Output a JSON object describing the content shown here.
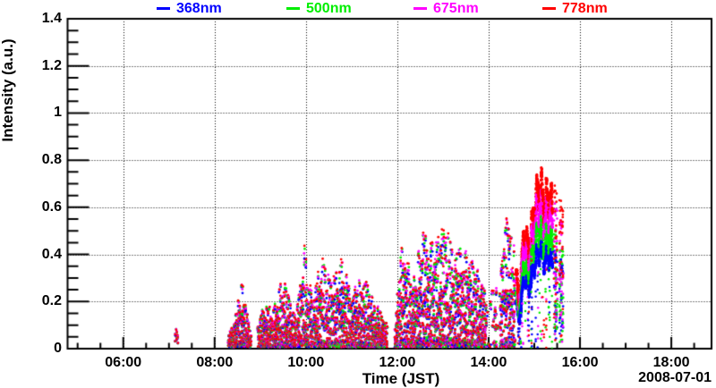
{
  "figure": {
    "y_axis_title": "Intensity (a.u.)",
    "x_axis_title": "Time (JST)",
    "date_label": "2008-07-01"
  },
  "chart_data": {
    "type": "scatter",
    "title": "",
    "x_axis": {
      "label": "Time (JST)",
      "date_annotation": "2008-07-01",
      "range_hours": [
        4.78,
        18.88
      ],
      "major_ticks": [
        {
          "hour": 6,
          "label": "06:00"
        },
        {
          "hour": 8,
          "label": "08:00"
        },
        {
          "hour": 10,
          "label": "10:00"
        },
        {
          "hour": 12,
          "label": "12:00"
        },
        {
          "hour": 14,
          "label": "14:00"
        },
        {
          "hour": 16,
          "label": "16:00"
        },
        {
          "hour": 18,
          "label": "18:00"
        }
      ],
      "minor_tick_interval_hours": 0.5,
      "grid": "dotted"
    },
    "y_axis": {
      "label": "Intensity (a.u.)",
      "range": [
        0,
        1.4
      ],
      "major_ticks": [
        {
          "value": 0,
          "label": "0"
        },
        {
          "value": 0.2,
          "label": "0.2"
        },
        {
          "value": 0.4,
          "label": "0.4"
        },
        {
          "value": 0.6,
          "label": "0.6"
        },
        {
          "value": 0.8,
          "label": "0.8"
        },
        {
          "value": 1,
          "label": "1"
        },
        {
          "value": 1.2,
          "label": "1.2"
        },
        {
          "value": 1.4,
          "label": "1.4"
        }
      ],
      "minor_tick_interval": 0.05,
      "grid": "dotted"
    },
    "series": [
      {
        "name": "368nm",
        "color": "#0000ff",
        "overlap_scale": 0.94,
        "separated_scale": 0.6,
        "peak_value": 0.47
      },
      {
        "name": "500nm",
        "color": "#00ee00",
        "overlap_scale": 0.97,
        "separated_scale": 0.73,
        "peak_value": 0.57
      },
      {
        "name": "675nm",
        "color": "#ff00ff",
        "overlap_scale": 0.99,
        "separated_scale": 0.89,
        "peak_value": 0.7
      },
      {
        "name": "778nm",
        "color": "#ff0000",
        "overlap_scale": 1.0,
        "separated_scale": 1.0,
        "peak_value": 0.78
      }
    ],
    "bursts": [
      {
        "t": [
          7.12,
          7.2
        ],
        "mode": "blob",
        "env": [
          [
            7.12,
            0.07
          ],
          [
            7.16,
            0.1
          ],
          [
            7.2,
            0.06
          ]
        ]
      },
      {
        "t": [
          8.3,
          8.8
        ],
        "mode": "spiky",
        "env": [
          [
            8.3,
            0.05
          ],
          [
            8.45,
            0.13
          ],
          [
            8.6,
            0.28
          ],
          [
            8.72,
            0.15
          ],
          [
            8.8,
            0.06
          ]
        ]
      },
      {
        "t": [
          8.95,
          9.78
        ],
        "mode": "spiky",
        "env": [
          [
            8.95,
            0.1
          ],
          [
            9.1,
            0.2
          ],
          [
            9.28,
            0.16
          ],
          [
            9.5,
            0.3
          ],
          [
            9.62,
            0.22
          ],
          [
            9.78,
            0.12
          ]
        ]
      },
      {
        "t": [
          9.8,
          10.15
        ],
        "mode": "spiky",
        "env": [
          [
            9.8,
            0.16
          ],
          [
            9.97,
            0.42
          ],
          [
            10.05,
            0.28
          ],
          [
            10.15,
            0.22
          ]
        ]
      },
      {
        "t": [
          10.15,
          10.95
        ],
        "mode": "spiky",
        "env": [
          [
            10.15,
            0.24
          ],
          [
            10.35,
            0.37
          ],
          [
            10.55,
            0.27
          ],
          [
            10.78,
            0.37
          ],
          [
            10.95,
            0.26
          ]
        ]
      },
      {
        "t": [
          10.95,
          11.78
        ],
        "mode": "spiky",
        "env": [
          [
            10.95,
            0.22
          ],
          [
            11.25,
            0.31
          ],
          [
            11.5,
            0.2
          ],
          [
            11.78,
            0.1
          ]
        ]
      },
      {
        "t": [
          11.95,
          12.35
        ],
        "mode": "spiky",
        "env": [
          [
            11.95,
            0.1
          ],
          [
            12.08,
            0.45
          ],
          [
            12.22,
            0.38
          ],
          [
            12.35,
            0.25
          ]
        ]
      },
      {
        "t": [
          12.35,
          13.25
        ],
        "mode": "spiky",
        "env": [
          [
            12.35,
            0.3
          ],
          [
            12.58,
            0.5
          ],
          [
            12.8,
            0.44
          ],
          [
            13.05,
            0.5
          ],
          [
            13.25,
            0.42
          ]
        ]
      },
      {
        "t": [
          13.25,
          13.95
        ],
        "mode": "spiky",
        "env": [
          [
            13.25,
            0.44
          ],
          [
            13.5,
            0.4
          ],
          [
            13.72,
            0.36
          ],
          [
            13.95,
            0.24
          ]
        ]
      },
      {
        "t": [
          13.97,
          14.22
        ],
        "mode": "sparse",
        "env": [
          [
            13.97,
            0.18
          ],
          [
            14.1,
            0.28
          ],
          [
            14.22,
            0.32
          ]
        ]
      },
      {
        "t": [
          14.25,
          14.58
        ],
        "mode": "spiky",
        "env": [
          [
            14.25,
            0.34
          ],
          [
            14.4,
            0.55
          ],
          [
            14.58,
            0.44
          ]
        ]
      },
      {
        "t": [
          14.6,
          15.4
        ],
        "mode": "band",
        "env": [
          [
            14.6,
            0.4
          ],
          [
            14.66,
            0.2
          ],
          [
            14.78,
            0.56
          ],
          [
            14.88,
            0.46
          ],
          [
            15.0,
            0.66
          ],
          [
            15.12,
            0.78
          ],
          [
            15.22,
            0.68
          ],
          [
            15.32,
            0.73
          ],
          [
            15.4,
            0.66
          ]
        ]
      },
      {
        "t": [
          15.43,
          15.5
        ],
        "mode": "streak",
        "env": [
          [
            15.43,
            0.72
          ],
          [
            15.5,
            0.66
          ]
        ]
      },
      {
        "t": [
          15.55,
          15.63
        ],
        "mode": "streak",
        "env": [
          [
            15.55,
            0.65
          ],
          [
            15.63,
            0.58
          ]
        ]
      }
    ]
  }
}
